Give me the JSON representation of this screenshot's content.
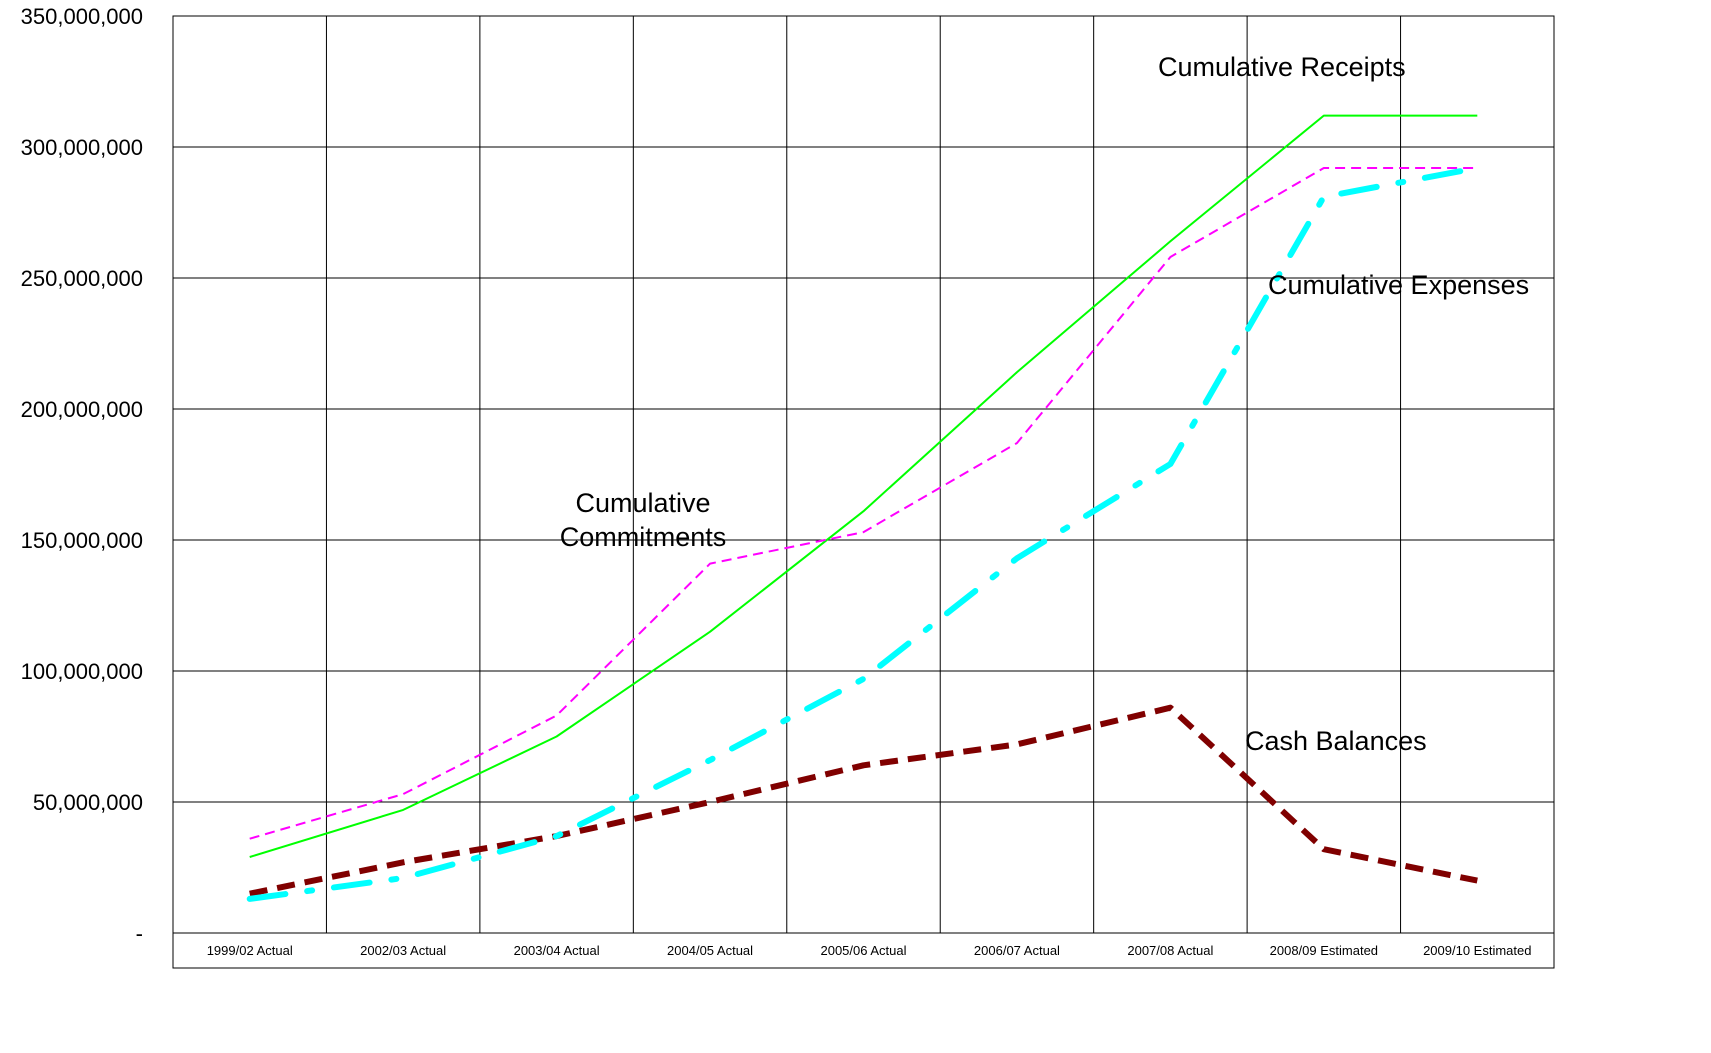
{
  "chart_data": {
    "type": "line",
    "title": "",
    "xlabel": "",
    "ylabel": "",
    "categories": [
      "1999/02 Actual",
      "2002/03 Actual",
      "2003/04 Actual",
      "2004/05 Actual",
      "2005/06 Actual",
      "2006/07 Actual",
      "2007/08 Actual",
      "2008/09 Estimated",
      "2009/10 Estimated"
    ],
    "ylim": [
      0,
      350000000
    ],
    "yticks": [
      {
        "value": 0,
        "label": "-"
      },
      {
        "value": 50000000,
        "label": "50,000,000"
      },
      {
        "value": 100000000,
        "label": "100,000,000"
      },
      {
        "value": 150000000,
        "label": "150,000,000"
      },
      {
        "value": 200000000,
        "label": "200,000,000"
      },
      {
        "value": 250000000,
        "label": "250,000,000"
      },
      {
        "value": 300000000,
        "label": "300,000,000"
      },
      {
        "value": 350000000,
        "label": "350,000,000"
      }
    ],
    "grid": true,
    "legend": "none",
    "series": [
      {
        "key": "receipts",
        "values": [
          29000000,
          47000000,
          75000000,
          115000000,
          161000000,
          214000000,
          264000000,
          312000000,
          312000000
        ],
        "color": "#00ff00",
        "style": "solid"
      },
      {
        "key": "commitments",
        "values": [
          36000000,
          53000000,
          83000000,
          141000000,
          153000000,
          187000000,
          258000000,
          292000000,
          292000000
        ],
        "color": "#ff00ff",
        "style": "dashed"
      },
      {
        "key": "expenses",
        "values": [
          13000000,
          21000000,
          37000000,
          66000000,
          97000000,
          143000000,
          179000000,
          281000000,
          292000000
        ],
        "color": "#00ffff",
        "style": "dash-dot"
      },
      {
        "key": "cash",
        "values": [
          15000000,
          27000000,
          37000000,
          50000000,
          64000000,
          72000000,
          86000000,
          32000000,
          20000000
        ],
        "color": "#800000",
        "style": "thick-dashed"
      }
    ],
    "annotations": [
      {
        "key": "receipts",
        "text": "Cumulative Receipts"
      },
      {
        "key": "expenses",
        "text": "Cumulative Expenses"
      },
      {
        "key": "commitments_line1",
        "text": "Cumulative"
      },
      {
        "key": "commitments_line2",
        "text": "Commitments"
      },
      {
        "key": "cash",
        "text": "Cash Balances"
      }
    ]
  }
}
